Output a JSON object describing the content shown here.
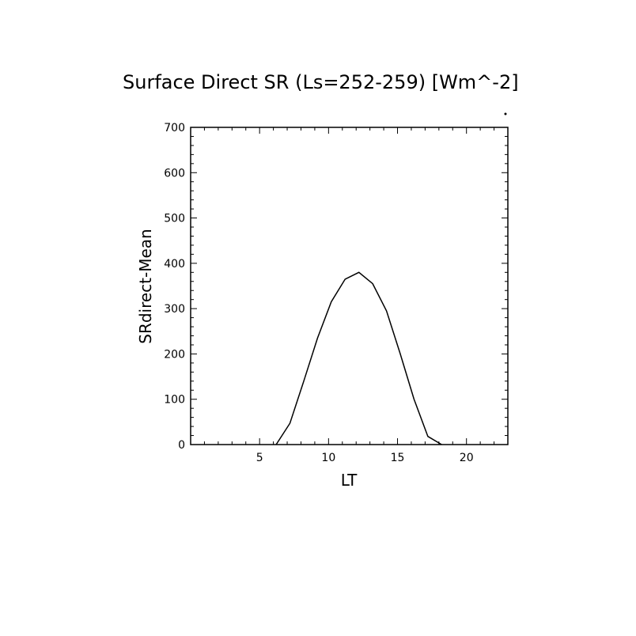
{
  "chart_data": {
    "type": "line",
    "title": "Surface Direct SR (Ls=252-259) [Wm^-2]",
    "xlabel": "LT",
    "ylabel": "SRdirect-Mean",
    "xlim": [
      0,
      23
    ],
    "ylim": [
      0,
      700
    ],
    "xticks": [
      5,
      10,
      15,
      20
    ],
    "yticks": [
      0,
      100,
      200,
      300,
      400,
      500,
      600,
      700
    ],
    "grid": false,
    "series": [
      {
        "x": [
          6.2,
          7.2,
          8.2,
          9.2,
          10.2,
          11.2,
          12.2,
          13.2,
          14.2,
          15.2,
          16.2,
          17.2,
          18.2
        ],
        "y": [
          0,
          47,
          140,
          235,
          315,
          365,
          380,
          355,
          295,
          200,
          100,
          18,
          0
        ]
      }
    ]
  }
}
